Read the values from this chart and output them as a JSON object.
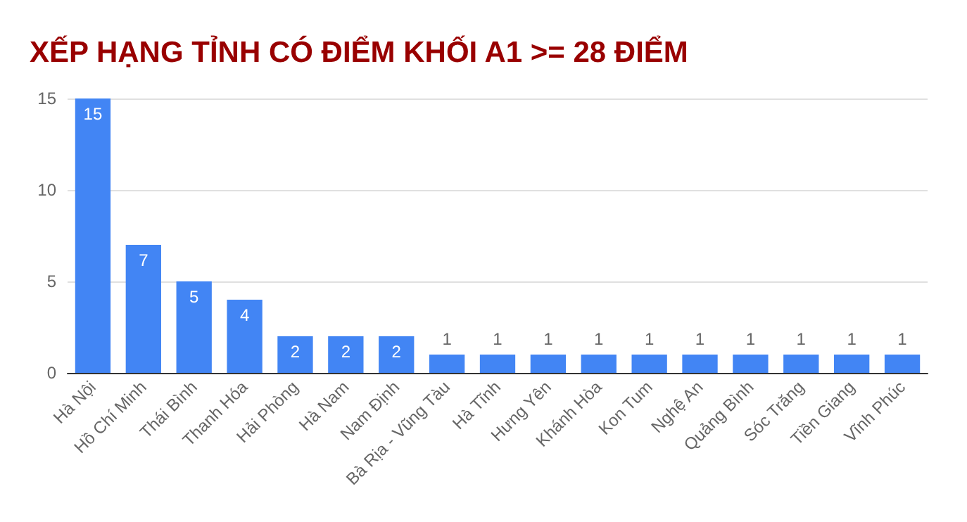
{
  "chart_data": {
    "type": "bar",
    "title": "XẾP HẠNG TỈNH CÓ ĐIỂM KHỐI A1 >= 28 ĐIỂM",
    "categories": [
      "Hà Nội",
      "Hồ Chí Minh",
      "Thái Bình",
      "Thanh Hóa",
      "Hải Phòng",
      "Hà Nam",
      "Nam Định",
      "Bà Rịa - Vũng Tàu",
      "Hà Tĩnh",
      "Hưng Yên",
      "Khánh Hòa",
      "Kon Tum",
      "Nghệ An",
      "Quảng Bình",
      "Sóc Trăng",
      "Tiền Giang",
      "Vĩnh Phúc"
    ],
    "values": [
      15,
      7,
      5,
      4,
      2,
      2,
      2,
      1,
      1,
      1,
      1,
      1,
      1,
      1,
      1,
      1,
      1
    ],
    "color": "#4285f4",
    "ylim": [
      0,
      15
    ],
    "yticks": [
      0,
      5,
      10,
      15
    ],
    "grid": "y",
    "data_labels": true
  }
}
